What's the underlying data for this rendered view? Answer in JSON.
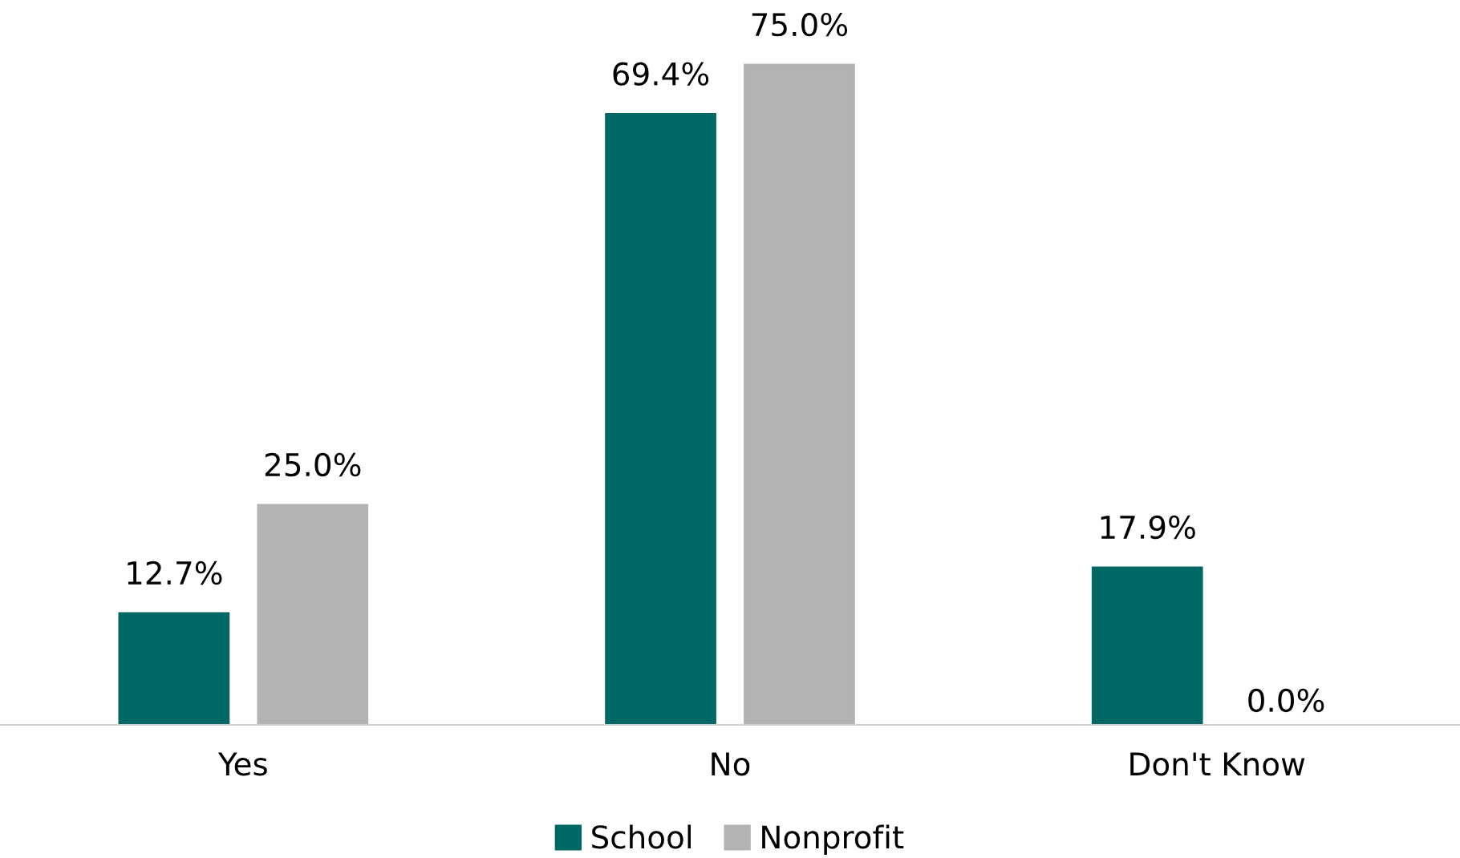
{
  "chart_data": {
    "type": "bar",
    "categories": [
      "Yes",
      "No",
      "Don't Know"
    ],
    "series": [
      {
        "name": "School",
        "color": "#006865",
        "values": [
          12.7,
          69.4,
          17.9
        ],
        "value_labels": [
          "12.7%",
          "69.4%",
          "17.9%"
        ]
      },
      {
        "name": "Nonprofit",
        "color": "#b3b3b3",
        "values": [
          25.0,
          75.0,
          0.0
        ],
        "value_labels": [
          "25.0%",
          "75.0%",
          "0.0%"
        ]
      }
    ],
    "legend": "bottom"
  }
}
